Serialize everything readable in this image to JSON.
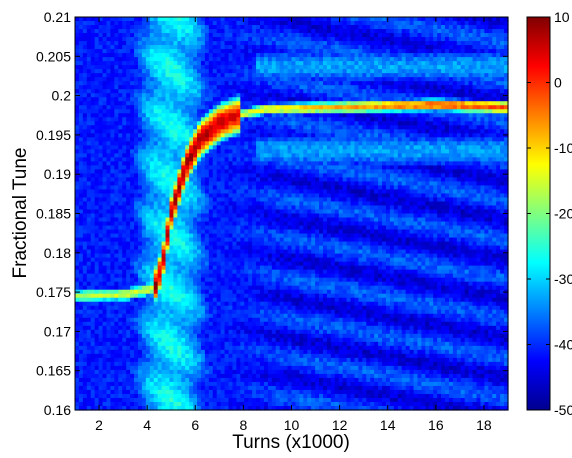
{
  "chart_data": {
    "type": "heatmap",
    "title": "",
    "xlabel": "Turns (x1000)",
    "ylabel": "Fractional Tune",
    "xlim": [
      1.0,
      19.0
    ],
    "ylim": [
      0.16,
      0.21
    ],
    "x_ticks": [
      2,
      4,
      6,
      8,
      10,
      12,
      14,
      16,
      18
    ],
    "x_tick_labels": [
      "2",
      "4",
      "6",
      "8",
      "10",
      "12",
      "14",
      "16",
      "18"
    ],
    "y_ticks": [
      0.16,
      0.165,
      0.17,
      0.175,
      0.18,
      0.185,
      0.19,
      0.195,
      0.2,
      0.205,
      0.21
    ],
    "y_tick_labels": [
      "0.16",
      "0.165",
      "0.17",
      "0.175",
      "0.18",
      "0.185",
      "0.19",
      "0.195",
      "0.2",
      "0.205",
      "0.21"
    ],
    "colorbar": {
      "colormap": "jet",
      "range": [
        -50,
        10
      ],
      "ticks": [
        10,
        0,
        -10,
        -20,
        -30,
        -40,
        -50
      ],
      "tick_labels": [
        "10",
        "0",
        "-10",
        "-20",
        "-30",
        "-40",
        "-50"
      ]
    },
    "grid": false,
    "background_level": -41,
    "features": [
      {
        "name": "broadband",
        "x_center": 5.0,
        "x_width": 1.4,
        "level": -29
      },
      {
        "name": "tune_line",
        "points": [
          [
            1.0,
            0.1745
          ],
          [
            3.2,
            0.1747
          ],
          [
            4.3,
            0.1755
          ],
          [
            4.6,
            0.178
          ],
          [
            5.0,
            0.185
          ],
          [
            5.6,
            0.191
          ],
          [
            6.2,
            0.1945
          ],
          [
            7.0,
            0.1965
          ],
          [
            7.8,
            0.1975
          ],
          [
            9.0,
            0.1983
          ],
          [
            12.0,
            0.1985
          ],
          [
            16.0,
            0.1988
          ],
          [
            19.0,
            0.1985
          ]
        ]
      },
      {
        "name": "intense_band",
        "x_range": [
          4.2,
          7.9
        ],
        "peak_level": 8
      }
    ]
  }
}
